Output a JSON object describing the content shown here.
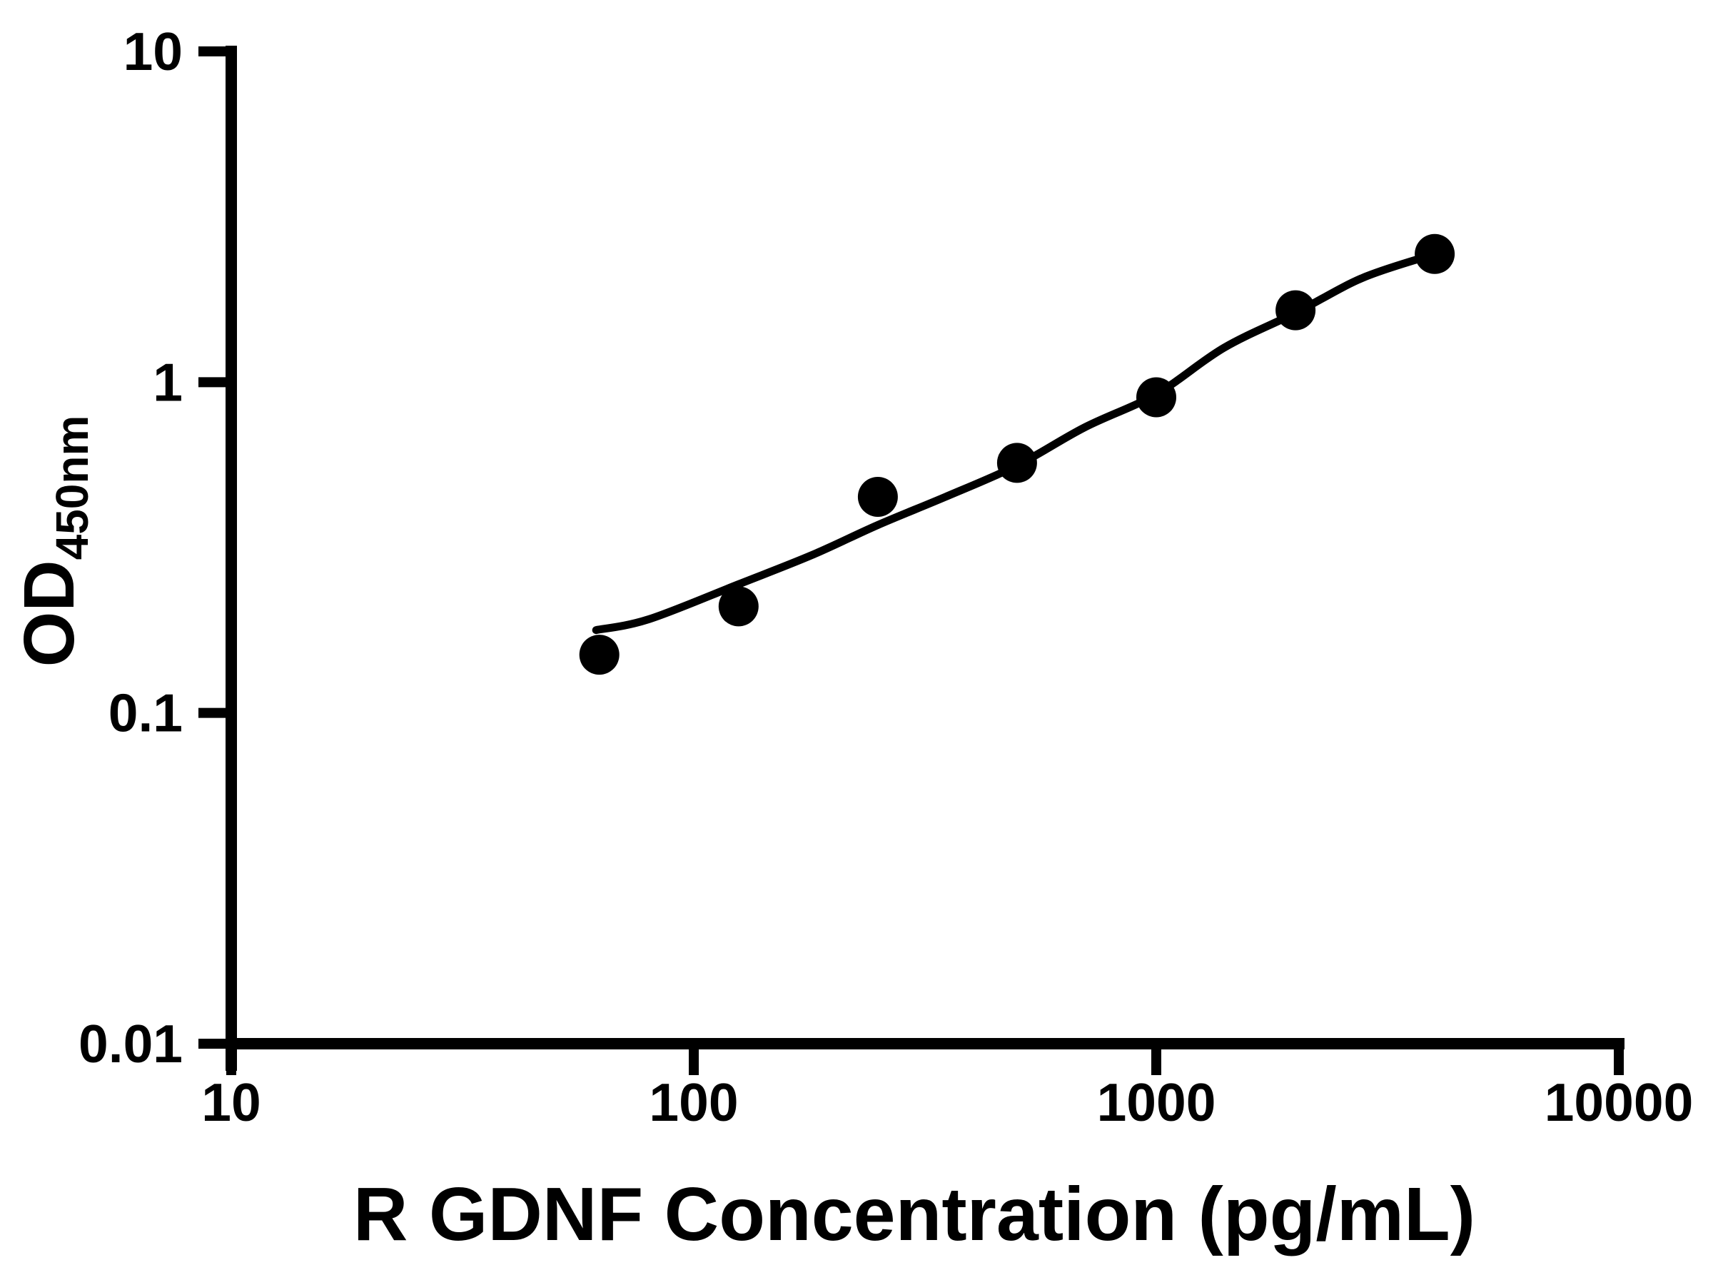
{
  "chart_data": {
    "type": "scatter",
    "title": "",
    "xlabel": "R GDNF Concentration (pg/mL)",
    "ylabel": "OD450nm",
    "ylabel_main": "OD",
    "ylabel_sub": "450nm",
    "x_scale": "log10",
    "y_scale": "log10",
    "xlim": [
      10,
      10000
    ],
    "ylim": [
      0.01,
      10
    ],
    "x_ticks": {
      "values": [
        10,
        100,
        1000,
        10000
      ],
      "labels": [
        "10",
        "100",
        "1000",
        "10000"
      ]
    },
    "y_ticks": {
      "values": [
        10,
        1,
        0.1,
        0.01
      ],
      "labels": [
        "10",
        "1",
        "0.1",
        "0.01"
      ]
    },
    "grid": false,
    "legend": "none",
    "series": [
      {
        "name": "standard_points",
        "kind": "scatter",
        "marker": "circle",
        "x": [
          62.5,
          125,
          250,
          500,
          1000,
          2000,
          4000
        ],
        "y": [
          0.15,
          0.21,
          0.45,
          0.57,
          0.9,
          1.65,
          2.44
        ]
      },
      {
        "name": "fit_curve",
        "kind": "line",
        "x": [
          61.5,
          80,
          125,
          180,
          250,
          350,
          500,
          700,
          1000,
          1400,
          2000,
          2800,
          4000
        ],
        "y": [
          0.178,
          0.192,
          0.245,
          0.3,
          0.37,
          0.45,
          0.56,
          0.73,
          0.92,
          1.27,
          1.62,
          2.07,
          2.44
        ]
      }
    ],
    "colors": {
      "points": "#000000",
      "curve": "#000000",
      "axis": "#000000",
      "text": "#000000",
      "background": "#ffffff"
    }
  }
}
